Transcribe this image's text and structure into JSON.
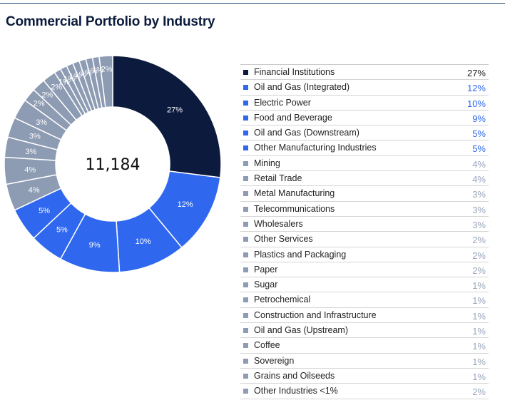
{
  "page": {
    "title": "Commercial Portfolio by Industry"
  },
  "colors": {
    "navy": "#0b1a3d",
    "blue": "#2f68ee",
    "gray": "#8d9bb3",
    "text_navy": "#222222",
    "text_blue": "#2f68ee",
    "text_gray": "#9aa6bb"
  },
  "chart_data": {
    "type": "pie",
    "variant": "donut",
    "title": "Commercial Portfolio by Industry",
    "center_total": "11,184",
    "legend_position": "right",
    "unit": "%",
    "slices": [
      {
        "name": "Financial Institutions",
        "value": 27,
        "color": "navy"
      },
      {
        "name": "Oil and Gas (Integrated)",
        "value": 12,
        "color": "blue"
      },
      {
        "name": "Electric Power",
        "value": 10,
        "color": "blue"
      },
      {
        "name": "Food and Beverage",
        "value": 9,
        "color": "blue"
      },
      {
        "name": "Oil and Gas (Downstream)",
        "value": 5,
        "color": "blue"
      },
      {
        "name": "Other Manufacturing Industries",
        "value": 5,
        "color": "blue"
      },
      {
        "name": "Mining",
        "value": 4,
        "color": "gray"
      },
      {
        "name": "Retail Trade",
        "value": 4,
        "color": "gray"
      },
      {
        "name": "Metal Manufacturing",
        "value": 3,
        "color": "gray"
      },
      {
        "name": "Telecommunications",
        "value": 3,
        "color": "gray"
      },
      {
        "name": "Wholesalers",
        "value": 3,
        "color": "gray"
      },
      {
        "name": "Other Services",
        "value": 2,
        "color": "gray"
      },
      {
        "name": "Plastics and Packaging",
        "value": 2,
        "color": "gray"
      },
      {
        "name": "Paper",
        "value": 2,
        "color": "gray"
      },
      {
        "name": "Sugar",
        "value": 1,
        "color": "gray"
      },
      {
        "name": "Petrochemical",
        "value": 1,
        "color": "gray"
      },
      {
        "name": "Construction and Infrastructure",
        "value": 1,
        "color": "gray"
      },
      {
        "name": "Oil and Gas (Upstream)",
        "value": 1,
        "color": "gray"
      },
      {
        "name": "Coffee",
        "value": 1,
        "color": "gray"
      },
      {
        "name": "Sovereign",
        "value": 1,
        "color": "gray"
      },
      {
        "name": "Grains and Oilseeds",
        "value": 1,
        "color": "gray"
      },
      {
        "name": "Other Industries <1%",
        "value": 2,
        "color": "gray"
      }
    ]
  }
}
